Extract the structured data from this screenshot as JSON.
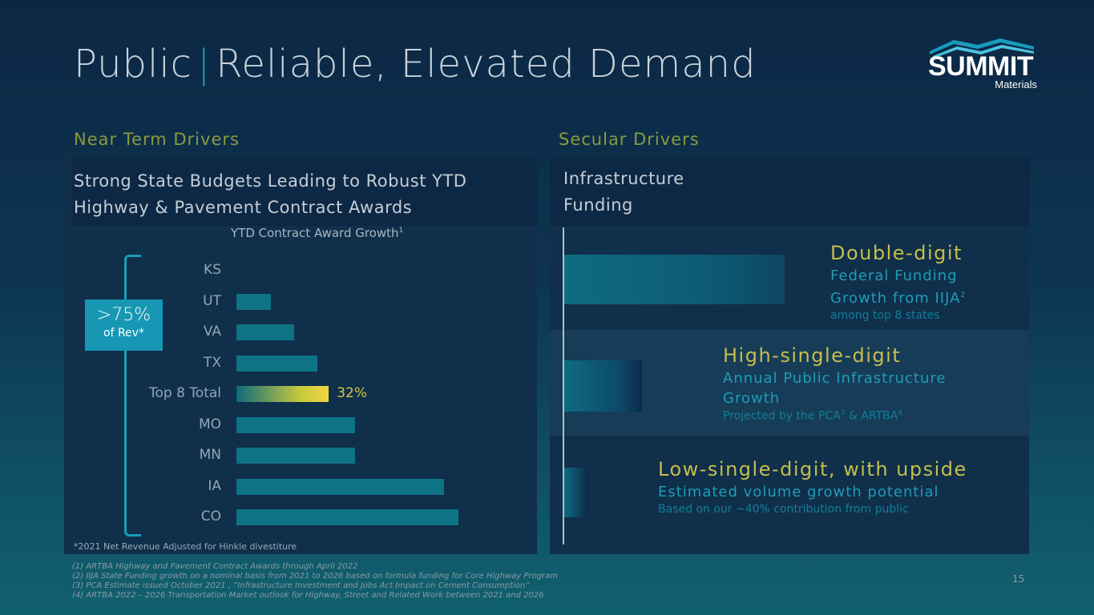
{
  "title": {
    "part1": "Public",
    "separator": "|",
    "part2": "Reliable, Elevated Demand"
  },
  "logo": {
    "word": "SUMMIT",
    "sub": "Materials"
  },
  "left": {
    "heading": "Near Term Drivers",
    "box_title_line1": "Strong State Budgets Leading to Robust YTD",
    "box_title_line2": "Highway & Pavement Contract Awards",
    "chart_title": "YTD Contract Award Growth",
    "chart_title_sup": "1",
    "badge_big": ">75%",
    "badge_small": "of Rev*",
    "footnote": "*2021 Net Revenue Adjusted for Hinkle divestiture"
  },
  "chart_data": {
    "type": "bar",
    "orientation": "horizontal",
    "title": "YTD Contract Award Growth",
    "categories": [
      "KS",
      "UT",
      "VA",
      "TX",
      "Top 8 Total",
      "MO",
      "MN",
      "IA",
      "CO"
    ],
    "values": [
      0,
      12,
      20,
      28,
      32,
      41,
      41,
      72,
      77
    ],
    "unit": "%",
    "highlight_category": "Top 8 Total",
    "labels": {
      "Top 8 Total": "32%"
    },
    "xlim": [
      0,
      80
    ]
  },
  "right": {
    "heading": "Secular Drivers",
    "box_title_line1": "Infrastructure",
    "box_title_line2": "Funding",
    "items": [
      {
        "headline": "Double-digit",
        "sub1": "Federal Funding",
        "sub2": "Growth from IIJA",
        "sub2_sup": "2",
        "note": "among top 8 states"
      },
      {
        "headline": "High-single-digit",
        "sub1": "Annual Public Infrastructure",
        "sub2": "Growth",
        "note_a": "Projected by the PCA",
        "note_sup1": "3",
        "note_b": " & ARTBA",
        "note_sup2": "4"
      },
      {
        "headline": "Low-single-digit, with upside",
        "sub1": "Estimated volume growth potential",
        "note": "Based on our ~40% contribution from public"
      }
    ]
  },
  "footnotes": [
    "(1)    ARTBA Highway and Pavement Contract Awards through April 2022",
    "(2)    IIJA State Funding growth on a nominal basis from 2021 to 2026 based on formula funding for Core Highway Program",
    "(3)    PCA Estimate issued October 2021 , “Infrastructure Investment and Jobs Act Impact on Cement Consumption”",
    "(4)    ARTBA 2022 – 2026 Transportation Market outlook for Highway, Street and Related Work between 2021 and 2026"
  ],
  "page_number": "15",
  "colors": {
    "accent_teal": "#1797b3",
    "accent_gold": "#c7bd4b",
    "bar": "#0f7386"
  }
}
